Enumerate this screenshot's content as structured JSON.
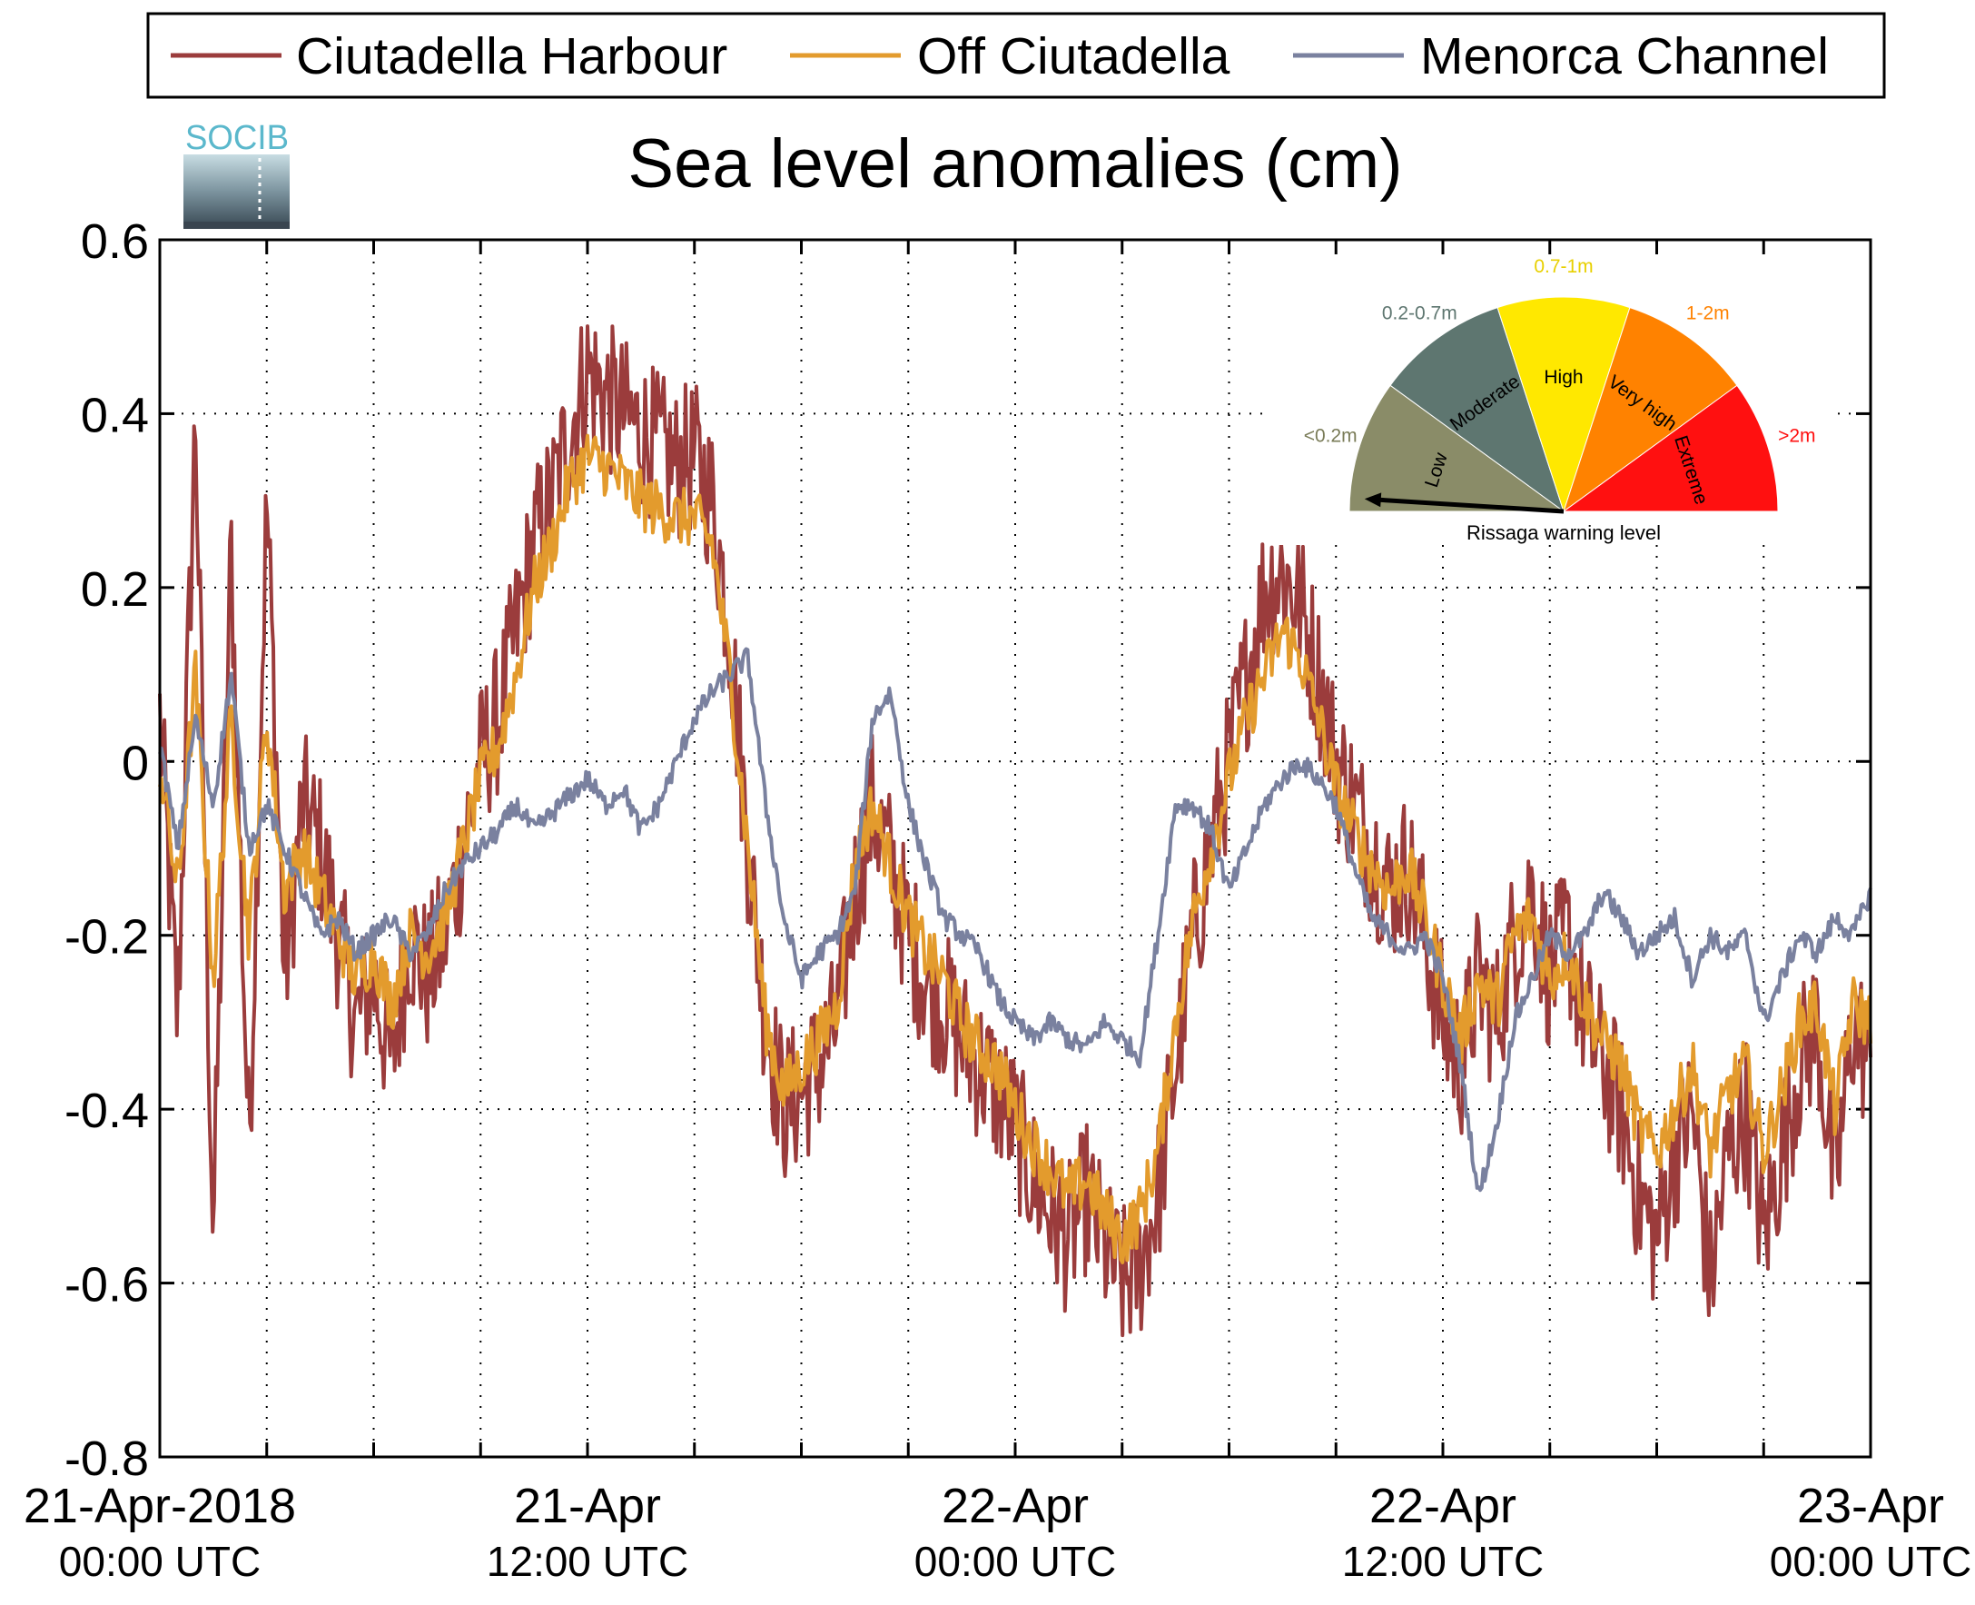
{
  "logo": {
    "text": "SOCIB",
    "color": "#5bb8cc"
  },
  "chart_data": {
    "type": "line",
    "title": "Sea level anomalies (cm)",
    "xlabel": "",
    "ylabel": "",
    "ylim": [
      -0.8,
      0.6
    ],
    "yticks": [
      -0.8,
      -0.6,
      -0.4,
      -0.2,
      0,
      0.2,
      0.4,
      0.6
    ],
    "ytick_labels": [
      "-0.8",
      "-0.6",
      "-0.4",
      "-0.2",
      "0",
      "0.2",
      "0.4",
      "0.6"
    ],
    "xlim_hours": [
      0,
      48
    ],
    "grid": true,
    "legend_position": "top",
    "xtick_labels": [
      {
        "hour": 0,
        "date": "21-Apr-2018",
        "time": "00:00 UTC"
      },
      {
        "hour": 12,
        "date": "21-Apr",
        "time": "12:00 UTC"
      },
      {
        "hour": 24,
        "date": "22-Apr",
        "time": "00:00 UTC"
      },
      {
        "hour": 36,
        "date": "22-Apr",
        "time": "12:00 UTC"
      },
      {
        "hour": 48,
        "date": "23-Apr",
        "time": "00:00 UTC"
      }
    ],
    "series": [
      {
        "name": "Ciutadella Harbour",
        "color": "#9b3c3c",
        "x": [
          0,
          0.5,
          1,
          1.5,
          2,
          2.5,
          3,
          3.5,
          4,
          4.5,
          5,
          5.5,
          6,
          6.5,
          7,
          7.5,
          8,
          8.5,
          9,
          9.5,
          10,
          10.5,
          11,
          11.5,
          12,
          12.5,
          13,
          13.5,
          14,
          14.5,
          15,
          15.5,
          16,
          16.5,
          17,
          17.5,
          18,
          18.5,
          19,
          19.5,
          20,
          20.5,
          21,
          21.5,
          22,
          22.5,
          23,
          23.5,
          24,
          24.5,
          25,
          25.5,
          26,
          26.5,
          27,
          27.5,
          28,
          28.5,
          29,
          29.5,
          30,
          30.5,
          31,
          31.5,
          32,
          32.5,
          33,
          33.5,
          34,
          34.5,
          35,
          35.5,
          36,
          36.5,
          37,
          37.5,
          38,
          38.5,
          39,
          39.5,
          40,
          40.5,
          41,
          41.5,
          42,
          42.5,
          43,
          43.5,
          44,
          44.5,
          45,
          45.5,
          46,
          46.5,
          47,
          47.5,
          48
        ],
        "values": [
          0.05,
          -0.3,
          0.4,
          -0.55,
          0.25,
          -0.45,
          0.3,
          -0.25,
          -0.05,
          -0.1,
          -0.2,
          -0.3,
          -0.25,
          -0.35,
          -0.2,
          -0.25,
          -0.2,
          -0.1,
          0.0,
          0.05,
          0.15,
          0.25,
          0.3,
          0.38,
          0.45,
          0.42,
          0.4,
          0.38,
          0.36,
          0.34,
          0.35,
          0.3,
          0.15,
          -0.1,
          -0.3,
          -0.4,
          -0.38,
          -0.35,
          -0.3,
          -0.15,
          -0.05,
          -0.12,
          -0.2,
          -0.25,
          -0.28,
          -0.32,
          -0.35,
          -0.38,
          -0.42,
          -0.48,
          -0.52,
          -0.55,
          -0.5,
          -0.56,
          -0.6,
          -0.58,
          -0.5,
          -0.35,
          -0.2,
          -0.1,
          0.0,
          0.1,
          0.2,
          0.22,
          0.18,
          0.1,
          0.0,
          -0.05,
          -0.1,
          -0.15,
          -0.12,
          -0.2,
          -0.3,
          -0.35,
          -0.25,
          -0.3,
          -0.2,
          -0.15,
          -0.25,
          -0.2,
          -0.3,
          -0.35,
          -0.4,
          -0.5,
          -0.55,
          -0.45,
          -0.4,
          -0.6,
          -0.45,
          -0.4,
          -0.55,
          -0.45,
          -0.35,
          -0.3,
          -0.5,
          -0.3,
          -0.35
        ],
        "noise": 0.09
      },
      {
        "name": "Off Ciutadella",
        "color": "#e39b2d",
        "x": [
          0,
          0.5,
          1,
          1.5,
          2,
          2.5,
          3,
          3.5,
          4,
          4.5,
          5,
          5.5,
          6,
          6.5,
          7,
          7.5,
          8,
          8.5,
          9,
          9.5,
          10,
          10.5,
          11,
          11.5,
          12,
          12.5,
          13,
          13.5,
          14,
          14.5,
          15,
          15.5,
          16,
          16.5,
          17,
          17.5,
          18,
          18.5,
          19,
          19.5,
          20,
          20.5,
          21,
          21.5,
          22,
          22.5,
          23,
          23.5,
          24,
          24.5,
          25,
          25.5,
          26,
          26.5,
          27,
          27.5,
          28,
          28.5,
          29,
          29.5,
          30,
          30.5,
          31,
          31.5,
          32,
          32.5,
          33,
          33.5,
          34,
          34.5,
          35,
          35.5,
          36,
          36.5,
          37,
          37.5,
          38,
          38.5,
          39,
          39.5,
          40,
          40.5,
          41,
          41.5,
          42,
          42.5,
          43,
          43.5,
          44,
          44.5,
          45,
          45.5,
          46,
          46.5,
          47,
          47.5,
          48
        ],
        "values": [
          0.0,
          -0.15,
          0.1,
          -0.25,
          0.05,
          -0.2,
          0.05,
          -0.15,
          -0.1,
          -0.15,
          -0.2,
          -0.25,
          -0.22,
          -0.28,
          -0.2,
          -0.22,
          -0.18,
          -0.1,
          -0.02,
          0.02,
          0.1,
          0.2,
          0.25,
          0.32,
          0.35,
          0.34,
          0.32,
          0.3,
          0.29,
          0.28,
          0.28,
          0.25,
          0.1,
          -0.1,
          -0.3,
          -0.38,
          -0.35,
          -0.32,
          -0.28,
          -0.12,
          -0.05,
          -0.12,
          -0.18,
          -0.22,
          -0.25,
          -0.3,
          -0.33,
          -0.35,
          -0.4,
          -0.44,
          -0.47,
          -0.5,
          -0.48,
          -0.52,
          -0.55,
          -0.52,
          -0.45,
          -0.3,
          -0.18,
          -0.1,
          -0.02,
          0.05,
          0.1,
          0.15,
          0.12,
          0.05,
          -0.03,
          -0.08,
          -0.12,
          -0.15,
          -0.12,
          -0.18,
          -0.25,
          -0.32,
          -0.25,
          -0.28,
          -0.2,
          -0.18,
          -0.25,
          -0.22,
          -0.28,
          -0.32,
          -0.35,
          -0.42,
          -0.45,
          -0.4,
          -0.35,
          -0.45,
          -0.38,
          -0.35,
          -0.45,
          -0.38,
          -0.3,
          -0.28,
          -0.4,
          -0.28,
          -0.3
        ],
        "noise": 0.035
      },
      {
        "name": "Menorca Channel",
        "color": "#7a819f",
        "x": [
          0,
          0.5,
          1,
          1.5,
          2,
          2.5,
          3,
          3.5,
          4,
          4.5,
          5,
          5.5,
          6,
          6.5,
          7,
          7.5,
          8,
          8.5,
          9,
          9.5,
          10,
          10.5,
          11,
          11.5,
          12,
          12.5,
          13,
          13.5,
          14,
          14.5,
          15,
          15.5,
          16,
          16.5,
          17,
          17.5,
          18,
          18.5,
          19,
          19.5,
          20,
          20.5,
          21,
          21.5,
          22,
          22.5,
          23,
          23.5,
          24,
          24.5,
          25,
          25.5,
          26,
          26.5,
          27,
          27.5,
          28,
          28.5,
          29,
          29.5,
          30,
          30.5,
          31,
          31.5,
          32,
          32.5,
          33,
          33.5,
          34,
          34.5,
          35,
          35.5,
          36,
          36.5,
          37,
          37.5,
          38,
          38.5,
          39,
          39.5,
          40,
          40.5,
          41,
          41.5,
          42,
          42.5,
          43,
          43.5,
          44,
          44.5,
          45,
          45.5,
          46,
          46.5,
          47,
          47.5,
          48
        ],
        "values": [
          0.02,
          -0.1,
          0.05,
          -0.05,
          0.1,
          -0.1,
          -0.05,
          -0.1,
          -0.15,
          -0.2,
          -0.18,
          -0.22,
          -0.2,
          -0.18,
          -0.22,
          -0.2,
          -0.15,
          -0.12,
          -0.1,
          -0.08,
          -0.05,
          -0.08,
          -0.06,
          -0.04,
          -0.02,
          -0.05,
          -0.03,
          -0.08,
          -0.05,
          0.0,
          0.05,
          0.08,
          0.1,
          0.12,
          -0.05,
          -0.18,
          -0.25,
          -0.22,
          -0.2,
          -0.15,
          0.05,
          0.08,
          -0.05,
          -0.12,
          -0.18,
          -0.2,
          -0.22,
          -0.27,
          -0.3,
          -0.32,
          -0.3,
          -0.32,
          -0.33,
          -0.3,
          -0.32,
          -0.34,
          -0.2,
          -0.05,
          -0.05,
          -0.08,
          -0.15,
          -0.1,
          -0.05,
          -0.02,
          0.0,
          -0.02,
          -0.05,
          -0.12,
          -0.18,
          -0.2,
          -0.22,
          -0.2,
          -0.25,
          -0.35,
          -0.5,
          -0.42,
          -0.3,
          -0.25,
          -0.2,
          -0.22,
          -0.2,
          -0.15,
          -0.18,
          -0.22,
          -0.2,
          -0.18,
          -0.25,
          -0.2,
          -0.22,
          -0.2,
          -0.3,
          -0.25,
          -0.2,
          -0.22,
          -0.18,
          -0.2,
          -0.15
        ],
        "noise": 0.012
      }
    ]
  },
  "gauge": {
    "caption": "Rissaga warning level",
    "needle_fraction": 0.02,
    "needle_color": "#000000",
    "segments": [
      {
        "name": "Low",
        "range": "<0.2m",
        "color": "#8a8c68",
        "range_color": "#7a7c58"
      },
      {
        "name": "Moderate",
        "range": "0.2-0.7m",
        "color": "#5e7670",
        "range_color": "#5e7670"
      },
      {
        "name": "High",
        "range": "0.7-1m",
        "color": "#ffe800",
        "range_color": "#e8d000"
      },
      {
        "name": "Very high",
        "range": "1-2m",
        "color": "#ff8200",
        "range_color": "#ff8200"
      },
      {
        "name": "Extreme",
        "range": ">2m",
        "color": "#ff1010",
        "range_color": "#ff1010"
      }
    ]
  }
}
